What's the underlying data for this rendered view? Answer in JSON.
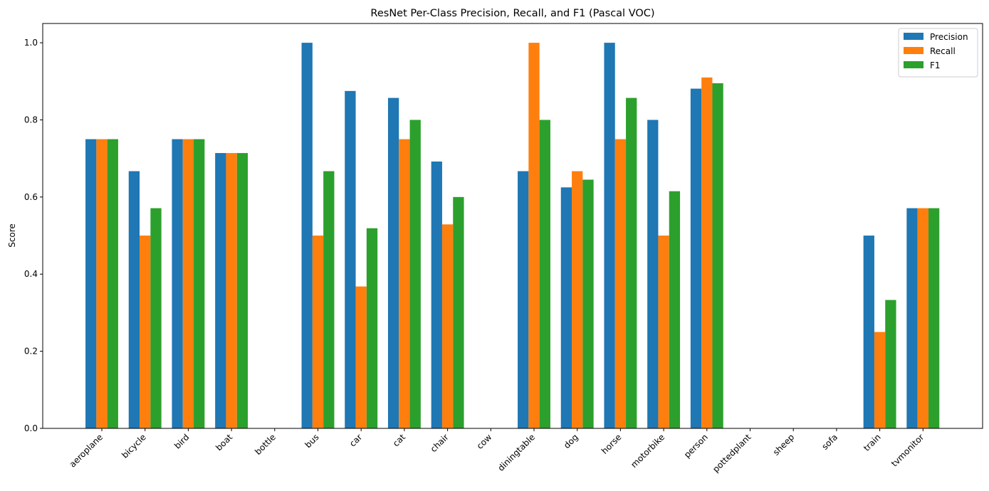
{
  "chart_data": {
    "type": "bar",
    "title": "ResNet Per-Class Precision, Recall, and F1 (Pascal VOC)",
    "xlabel": "",
    "ylabel": "Score",
    "ylim": [
      0,
      1.05
    ],
    "yticks": [
      "0.0",
      "0.2",
      "0.4",
      "0.6",
      "0.8",
      "1.0"
    ],
    "grid": false,
    "legend_position": "top-right",
    "categories": [
      "aeroplane",
      "bicycle",
      "bird",
      "boat",
      "bottle",
      "bus",
      "car",
      "cat",
      "chair",
      "cow",
      "diningtable",
      "dog",
      "horse",
      "motorbike",
      "person",
      "pottedplant",
      "sheep",
      "sofa",
      "train",
      "tvmonitor"
    ],
    "series": [
      {
        "name": "Precision",
        "color": "#1f77b4",
        "values": [
          0.75,
          0.667,
          0.75,
          0.714,
          0.0,
          1.0,
          0.875,
          0.857,
          0.692,
          0.0,
          0.667,
          0.625,
          1.0,
          0.8,
          0.881,
          0.0,
          0.0,
          0.0,
          0.5,
          0.571
        ]
      },
      {
        "name": "Recall",
        "color": "#ff7f0e",
        "values": [
          0.75,
          0.5,
          0.75,
          0.714,
          0.0,
          0.5,
          0.368,
          0.75,
          0.529,
          0.0,
          1.0,
          0.667,
          0.75,
          0.5,
          0.91,
          0.0,
          0.0,
          0.0,
          0.25,
          0.571
        ]
      },
      {
        "name": "F1",
        "color": "#2ca02c",
        "values": [
          0.75,
          0.571,
          0.75,
          0.714,
          0.0,
          0.667,
          0.519,
          0.8,
          0.6,
          0.0,
          0.8,
          0.645,
          0.857,
          0.615,
          0.895,
          0.0,
          0.0,
          0.0,
          0.333,
          0.571
        ]
      }
    ]
  }
}
